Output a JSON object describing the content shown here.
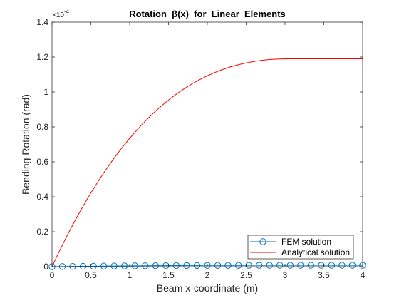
{
  "chart_data": {
    "type": "line",
    "title": "Rotation  β(x)  for  Linear  Elements",
    "xlabel": "Beam x-coordinate (m)",
    "ylabel": "Bending Rotation (rad)",
    "y_exponent_label": "×10",
    "y_exponent_power": "-4",
    "xlim": [
      0,
      4
    ],
    "ylim": [
      0,
      1.4
    ],
    "xticks": [
      0,
      0.5,
      1,
      1.5,
      2,
      2.5,
      3,
      3.5,
      4
    ],
    "xtick_labels": [
      "0",
      "0.5",
      "1",
      "1.5",
      "2",
      "2.5",
      "3",
      "3.5",
      "4"
    ],
    "yticks": [
      0,
      0.2,
      0.4,
      0.6,
      0.8,
      1,
      1.2,
      1.4
    ],
    "ytick_labels": [
      "0",
      "0.2",
      "0.4",
      "0.6",
      "0.8",
      "1",
      "1.2",
      "1.4"
    ],
    "grid": false,
    "legend_position": "bottom-right",
    "series": [
      {
        "name": "FEM solution",
        "style": "line-circle-markers",
        "color": "#0072BD",
        "x": [
          0,
          0.1333,
          0.2667,
          0.4,
          0.5333,
          0.6667,
          0.8,
          0.9333,
          1.0667,
          1.2,
          1.3333,
          1.4667,
          1.6,
          1.7333,
          1.8667,
          2,
          2.1333,
          2.2667,
          2.4,
          2.5333,
          2.6667,
          2.8,
          2.9333,
          3.0667,
          3.2,
          3.3333,
          3.4667,
          3.6,
          3.7333,
          3.8667,
          4
        ],
        "y": [
          0,
          0.0006,
          0.0013,
          0.0019,
          0.0025,
          0.0031,
          0.0036,
          0.0041,
          0.0046,
          0.005,
          0.0054,
          0.0058,
          0.0061,
          0.0064,
          0.0066,
          0.0069,
          0.0071,
          0.0072,
          0.0074,
          0.0075,
          0.0076,
          0.0077,
          0.0077,
          0.0078,
          0.0078,
          0.0078,
          0.0078,
          0.0078,
          0.0078,
          0.0078,
          0.0078
        ]
      },
      {
        "name": "Analytical solution",
        "style": "line",
        "color": "#ff0000",
        "x": [
          0,
          0.1,
          0.2,
          0.3,
          0.4,
          0.5,
          0.6,
          0.7,
          0.8,
          0.9,
          1.0,
          1.1,
          1.2,
          1.3,
          1.4,
          1.5,
          1.6,
          1.7,
          1.8,
          1.9,
          2.0,
          2.1,
          2.2,
          2.3,
          2.4,
          2.5,
          2.6,
          2.7,
          2.8,
          2.9,
          3.0,
          3.1,
          3.2,
          3.3,
          3.4,
          3.5,
          3.6,
          3.7,
          3.8,
          3.9,
          4.0
        ],
        "y": [
          0,
          0.0937,
          0.1826,
          0.2668,
          0.3464,
          0.4216,
          0.4924,
          0.559,
          0.6216,
          0.6801,
          0.7347,
          0.7856,
          0.8328,
          0.8765,
          0.9167,
          0.9537,
          0.9874,
          1.0181,
          1.0458,
          1.0706,
          1.0927,
          1.1122,
          1.1292,
          1.1438,
          1.1562,
          1.1664,
          1.1746,
          1.1809,
          1.1855,
          1.1885,
          1.1899,
          1.19,
          1.19,
          1.19,
          1.19,
          1.19,
          1.19,
          1.19,
          1.19,
          1.19,
          1.19
        ]
      }
    ]
  }
}
